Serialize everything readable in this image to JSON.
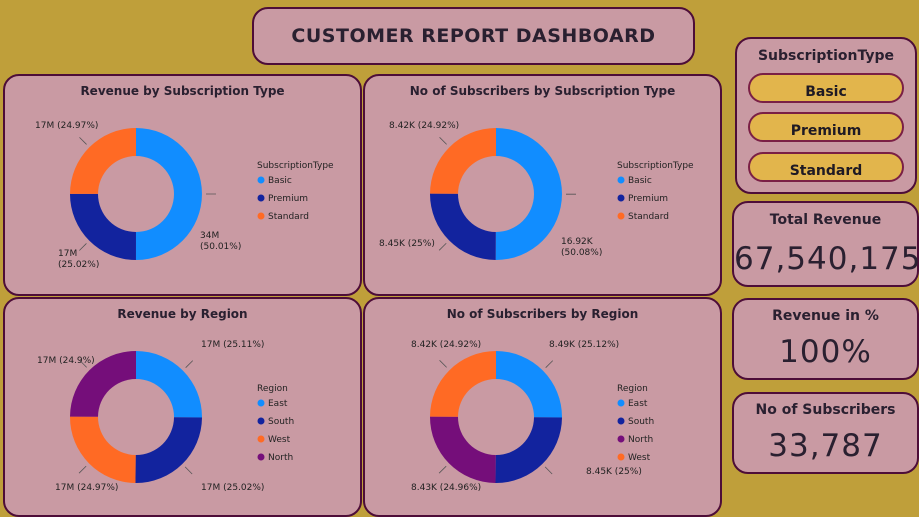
{
  "header": {
    "title": "CUSTOMER REPORT DASHBOARD"
  },
  "slicer": {
    "title": "SubscriptionType",
    "options": [
      "Basic",
      "Premium",
      "Standard"
    ]
  },
  "kpis": {
    "total_revenue": {
      "label": "Total Revenue",
      "value": "67,540,175"
    },
    "revenue_pct": {
      "label": "Revenue in %",
      "value": "100%"
    },
    "subscribers": {
      "label": "No of Subscribers",
      "value": "33,787"
    }
  },
  "chart_data": [
    {
      "type": "pie",
      "title": "Revenue by Subscription Type",
      "legend_title": "SubscriptionType",
      "legend_position": "right",
      "slices": [
        {
          "name": "Basic",
          "value": 50.01,
          "label": "34M\n(50.01%)",
          "color": "#118dff"
        },
        {
          "name": "Premium",
          "value": 25.02,
          "label": "17M\n(25.02%)",
          "color": "#12239e"
        },
        {
          "name": "Standard",
          "value": 24.97,
          "label": "17M (24.97%)",
          "color": "#ff6a24"
        }
      ],
      "legend": [
        {
          "name": "Basic",
          "color": "#118dff"
        },
        {
          "name": "Premium",
          "color": "#12239e"
        },
        {
          "name": "Standard",
          "color": "#ff6a24"
        }
      ]
    },
    {
      "type": "pie",
      "title": "No of Subscribers by Subscription Type",
      "legend_title": "SubscriptionType",
      "legend_position": "right",
      "slices": [
        {
          "name": "Basic",
          "value": 50.08,
          "label": "16.92K\n(50.08%)",
          "color": "#118dff"
        },
        {
          "name": "Premium",
          "value": 25.0,
          "label": "8.45K (25%)",
          "color": "#12239e"
        },
        {
          "name": "Standard",
          "value": 24.92,
          "label": "8.42K (24.92%)",
          "color": "#ff6a24"
        }
      ],
      "legend": [
        {
          "name": "Basic",
          "color": "#118dff"
        },
        {
          "name": "Premium",
          "color": "#12239e"
        },
        {
          "name": "Standard",
          "color": "#ff6a24"
        }
      ]
    },
    {
      "type": "pie",
      "title": "Revenue by Region",
      "legend_title": "Region",
      "legend_position": "right",
      "slices": [
        {
          "name": "East",
          "value": 25.11,
          "label": "17M (25.11%)",
          "color": "#118dff"
        },
        {
          "name": "South",
          "value": 25.02,
          "label": "17M (25.02%)",
          "color": "#12239e"
        },
        {
          "name": "West",
          "value": 24.97,
          "label": "17M (24.97%)",
          "color": "#ff6a24"
        },
        {
          "name": "North",
          "value": 24.9,
          "label": "17M (24.9%)",
          "color": "#750e7a"
        }
      ],
      "legend": [
        {
          "name": "East",
          "color": "#118dff"
        },
        {
          "name": "South",
          "color": "#12239e"
        },
        {
          "name": "West",
          "color": "#ff6a24"
        },
        {
          "name": "North",
          "color": "#750e7a"
        }
      ]
    },
    {
      "type": "pie",
      "title": "No of Subscribers by Region",
      "legend_title": "Region",
      "legend_position": "right",
      "slices": [
        {
          "name": "East",
          "value": 25.12,
          "label": "8.49K (25.12%)",
          "color": "#118dff"
        },
        {
          "name": "South",
          "value": 25.0,
          "label": "8.45K (25%)",
          "color": "#12239e"
        },
        {
          "name": "North",
          "value": 24.96,
          "label": "8.43K (24.96%)",
          "color": "#750e7a"
        },
        {
          "name": "West",
          "value": 24.92,
          "label": "8.42K (24.92%)",
          "color": "#ff6a24"
        }
      ],
      "legend": [
        {
          "name": "East",
          "color": "#118dff"
        },
        {
          "name": "South",
          "color": "#12239e"
        },
        {
          "name": "North",
          "color": "#750e7a"
        },
        {
          "name": "West",
          "color": "#ff6a24"
        }
      ]
    }
  ]
}
